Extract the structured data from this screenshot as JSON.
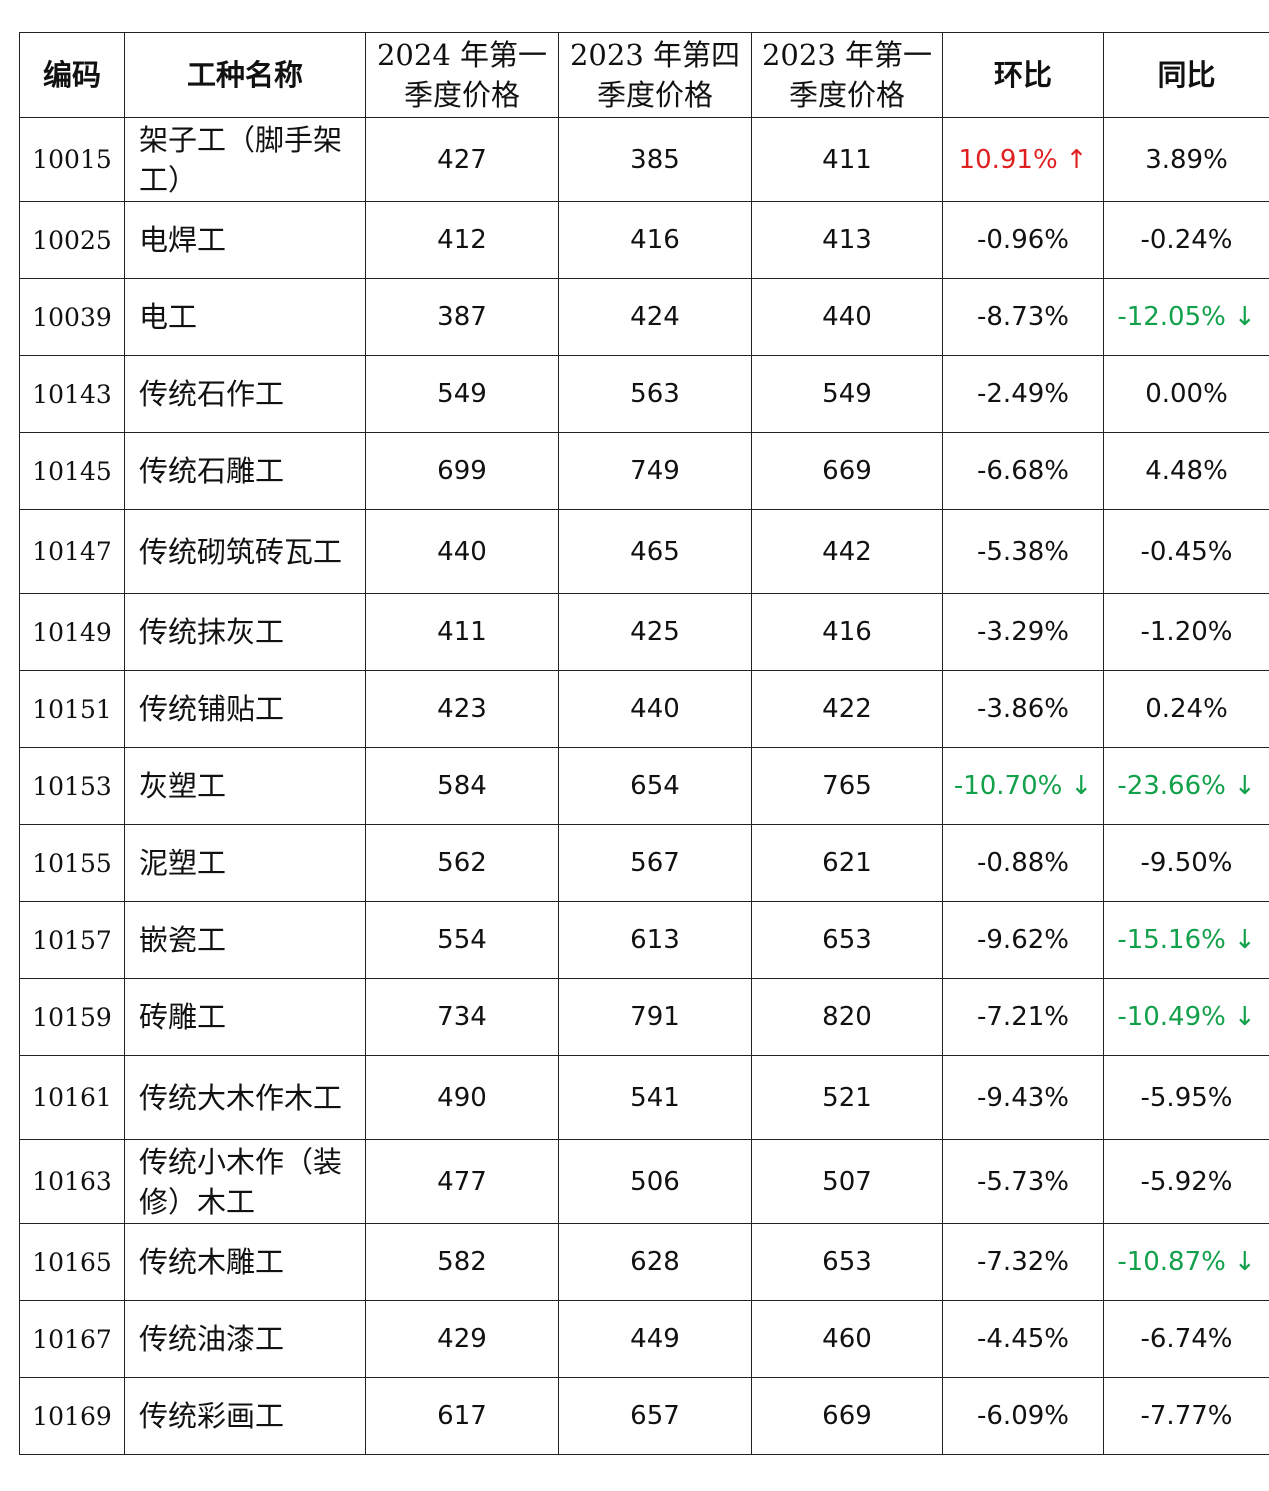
{
  "headers": [
    "编码",
    "工种名称",
    "2024 年第一季度价格",
    "2023 年第四季度价格",
    "2023 年第一季度价格",
    "环比",
    "同比"
  ],
  "colors": {
    "up": "#e02020",
    "down": "#12a04a"
  },
  "rows": [
    {
      "code": "10015",
      "name": "架子工（脚手架工）",
      "p1": "427",
      "p2": "385",
      "p3": "411",
      "qoq": "10.91%",
      "yoy": "3.89%"
    },
    {
      "code": "10025",
      "name": "电焊工",
      "p1": "412",
      "p2": "416",
      "p3": "413",
      "qoq": "-0.96%",
      "yoy": "-0.24%"
    },
    {
      "code": "10039",
      "name": "电工",
      "p1": "387",
      "p2": "424",
      "p3": "440",
      "qoq": "-8.73%",
      "yoy": "-12.05%"
    },
    {
      "code": "10143",
      "name": "传统石作工",
      "p1": "549",
      "p2": "563",
      "p3": "549",
      "qoq": "-2.49%",
      "yoy": "0.00%"
    },
    {
      "code": "10145",
      "name": "传统石雕工",
      "p1": "699",
      "p2": "749",
      "p3": "669",
      "qoq": "-6.68%",
      "yoy": "4.48%"
    },
    {
      "code": "10147",
      "name": "传统砌筑砖瓦工",
      "p1": "440",
      "p2": "465",
      "p3": "442",
      "qoq": "-5.38%",
      "yoy": "-0.45%"
    },
    {
      "code": "10149",
      "name": "传统抹灰工",
      "p1": "411",
      "p2": "425",
      "p3": "416",
      "qoq": "-3.29%",
      "yoy": "-1.20%"
    },
    {
      "code": "10151",
      "name": "传统铺贴工",
      "p1": "423",
      "p2": "440",
      "p3": "422",
      "qoq": "-3.86%",
      "yoy": "0.24%"
    },
    {
      "code": "10153",
      "name": "灰塑工",
      "p1": "584",
      "p2": "654",
      "p3": "765",
      "qoq": "-10.70%",
      "yoy": "-23.66%"
    },
    {
      "code": "10155",
      "name": "泥塑工",
      "p1": "562",
      "p2": "567",
      "p3": "621",
      "qoq": "-0.88%",
      "yoy": "-9.50%"
    },
    {
      "code": "10157",
      "name": "嵌瓷工",
      "p1": "554",
      "p2": "613",
      "p3": "653",
      "qoq": "-9.62%",
      "yoy": "-15.16%"
    },
    {
      "code": "10159",
      "name": "砖雕工",
      "p1": "734",
      "p2": "791",
      "p3": "820",
      "qoq": "-7.21%",
      "yoy": "-10.49%"
    },
    {
      "code": "10161",
      "name": "传统大木作木工",
      "p1": "490",
      "p2": "541",
      "p3": "521",
      "qoq": "-9.43%",
      "yoy": "-5.95%"
    },
    {
      "code": "10163",
      "name": "传统小木作（装修）木工",
      "p1": "477",
      "p2": "506",
      "p3": "507",
      "qoq": "-5.73%",
      "yoy": "-5.92%"
    },
    {
      "code": "10165",
      "name": "传统木雕工",
      "p1": "582",
      "p2": "628",
      "p3": "653",
      "qoq": "-7.32%",
      "yoy": "-10.87%"
    },
    {
      "code": "10167",
      "name": "传统油漆工",
      "p1": "429",
      "p2": "449",
      "p3": "460",
      "qoq": "-4.45%",
      "yoy": "-6.74%"
    },
    {
      "code": "10169",
      "name": "传统彩画工",
      "p1": "617",
      "p2": "657",
      "p3": "669",
      "qoq": "-6.09%",
      "yoy": "-7.77%"
    }
  ]
}
